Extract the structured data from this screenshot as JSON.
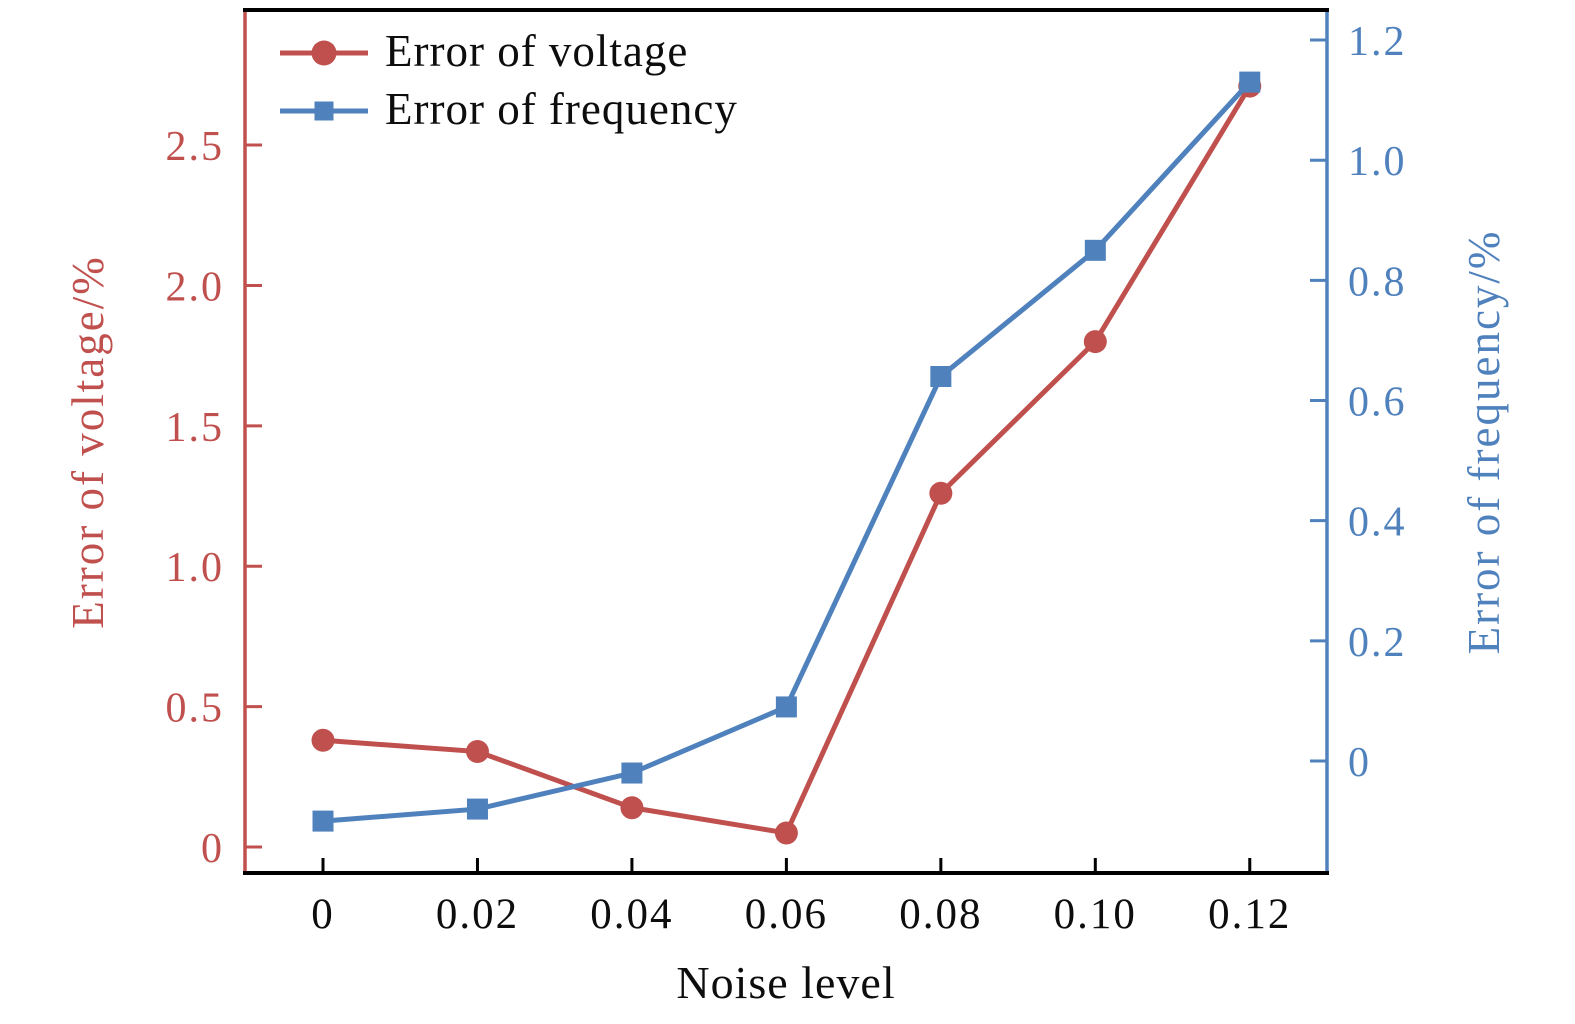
{
  "chart_data": {
    "type": "line",
    "title": "",
    "xlabel": "Noise level",
    "x": [
      0,
      0.02,
      0.04,
      0.06,
      0.08,
      0.1,
      0.12
    ],
    "x_tick_labels": [
      "0",
      "0.02",
      "0.04",
      "0.06",
      "0.08",
      "0.10",
      "0.12"
    ],
    "xlim": [
      -0.0101,
      0.13
    ],
    "grid": false,
    "legend_position": "top-left",
    "frame_color": "#000000",
    "axes": {
      "left": {
        "label": "Error of voltage/%",
        "color": "#c0504d",
        "ticks": [
          0,
          0.5,
          1.0,
          1.5,
          2.0,
          2.5
        ],
        "tick_labels": [
          "0",
          "0.5",
          "1.0",
          "1.5",
          "2.0",
          "2.5"
        ],
        "lim": [
          -0.0926,
          2.981
        ]
      },
      "right": {
        "label": "Error of frequency/%",
        "color": "#4f81bd",
        "ticks": [
          0,
          0.2,
          0.4,
          0.6,
          0.8,
          1.0,
          1.2
        ],
        "tick_labels": [
          "0",
          "0.2",
          "0.4",
          "0.6",
          "0.8",
          "1.0",
          "1.2"
        ],
        "lim": [
          -0.1864,
          1.25
        ]
      }
    },
    "series": [
      {
        "name": "Error of voltage",
        "axis": "left",
        "marker": "circle",
        "color": "#c0504d",
        "values": [
          0.38,
          0.34,
          0.14,
          0.05,
          1.26,
          1.8,
          2.71
        ]
      },
      {
        "name": "Error of frequency",
        "axis": "right",
        "marker": "square",
        "color": "#4f81bd",
        "values": [
          -0.1,
          -0.08,
          -0.02,
          0.09,
          0.64,
          0.85,
          1.13
        ]
      }
    ]
  }
}
